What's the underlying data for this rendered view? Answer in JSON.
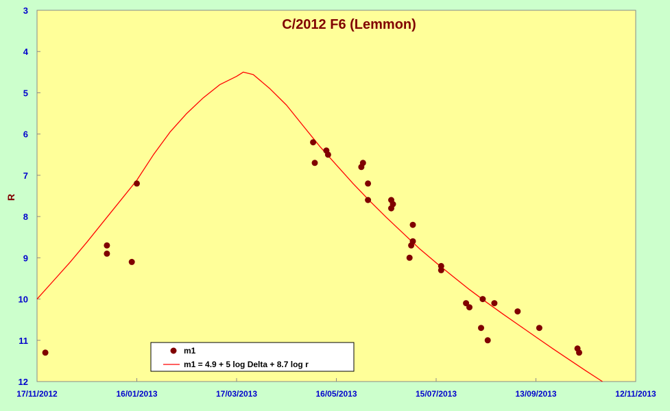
{
  "chart_data": {
    "type": "scatter",
    "title": "C/2012 F6 (Lemmon)",
    "xlabel": "",
    "ylabel": "R",
    "x_axis": {
      "type": "date",
      "min": "2012-11-17",
      "max": "2013-11-12",
      "ticks": [
        "2012-11-17",
        "2013-01-16",
        "2013-03-17",
        "2013-05-16",
        "2013-07-15",
        "2013-09-13",
        "2013-11-12"
      ],
      "tick_labels": [
        "17/11/2012",
        "16/01/2013",
        "17/03/2013",
        "16/05/2013",
        "15/07/2013",
        "13/09/2013",
        "12/11/2013"
      ]
    },
    "y_axis": {
      "min": 3,
      "max": 12,
      "reversed": true,
      "ticks": [
        3,
        4,
        5,
        6,
        7,
        8,
        9,
        10,
        11,
        12
      ],
      "tick_labels": [
        "3",
        "4",
        "5",
        "6",
        "7",
        "8",
        "9",
        "10",
        "11",
        "12"
      ]
    },
    "grid": false,
    "legend_position": "bottom-left",
    "series": [
      {
        "name": "m1",
        "kind": "points",
        "color": "#800000",
        "points": [
          {
            "x": "2012-11-22",
            "y": 11.3
          },
          {
            "x": "2012-12-29",
            "y": 8.7
          },
          {
            "x": "2012-12-29",
            "y": 8.9
          },
          {
            "x": "2013-01-13",
            "y": 9.1
          },
          {
            "x": "2013-01-16",
            "y": 7.2
          },
          {
            "x": "2013-05-02",
            "y": 6.2
          },
          {
            "x": "2013-05-03",
            "y": 6.7
          },
          {
            "x": "2013-05-10",
            "y": 6.4
          },
          {
            "x": "2013-05-11",
            "y": 6.5
          },
          {
            "x": "2013-05-31",
            "y": 6.8
          },
          {
            "x": "2013-06-01",
            "y": 6.7
          },
          {
            "x": "2013-06-04",
            "y": 7.2
          },
          {
            "x": "2013-06-04",
            "y": 7.6
          },
          {
            "x": "2013-06-18",
            "y": 7.6
          },
          {
            "x": "2013-06-18",
            "y": 7.8
          },
          {
            "x": "2013-06-19",
            "y": 7.7
          },
          {
            "x": "2013-06-29",
            "y": 9.0
          },
          {
            "x": "2013-06-30",
            "y": 8.7
          },
          {
            "x": "2013-07-01",
            "y": 8.6
          },
          {
            "x": "2013-07-01",
            "y": 8.2
          },
          {
            "x": "2013-07-18",
            "y": 9.2
          },
          {
            "x": "2013-07-18",
            "y": 9.3
          },
          {
            "x": "2013-08-02",
            "y": 10.1
          },
          {
            "x": "2013-08-04",
            "y": 10.2
          },
          {
            "x": "2013-08-11",
            "y": 10.7
          },
          {
            "x": "2013-08-12",
            "y": 10.0
          },
          {
            "x": "2013-08-15",
            "y": 11.0
          },
          {
            "x": "2013-08-19",
            "y": 10.1
          },
          {
            "x": "2013-09-02",
            "y": 10.3
          },
          {
            "x": "2013-09-15",
            "y": 10.7
          },
          {
            "x": "2013-10-08",
            "y": 11.2
          },
          {
            "x": "2013-10-09",
            "y": 11.3
          }
        ]
      },
      {
        "name": "m1 = 4.9 + 5 log Delta + 8.7  log r",
        "kind": "line",
        "color": "#ff0000",
        "points": [
          {
            "x": "2012-11-17",
            "y": 10.0
          },
          {
            "x": "2012-11-27",
            "y": 9.55
          },
          {
            "x": "2012-12-07",
            "y": 9.1
          },
          {
            "x": "2012-12-17",
            "y": 8.62
          },
          {
            "x": "2012-12-27",
            "y": 8.12
          },
          {
            "x": "2013-01-06",
            "y": 7.62
          },
          {
            "x": "2013-01-16",
            "y": 7.12
          },
          {
            "x": "2013-01-26",
            "y": 6.5
          },
          {
            "x": "2013-02-05",
            "y": 5.95
          },
          {
            "x": "2013-02-15",
            "y": 5.5
          },
          {
            "x": "2013-02-25",
            "y": 5.12
          },
          {
            "x": "2013-03-07",
            "y": 4.8
          },
          {
            "x": "2013-03-17",
            "y": 4.6
          },
          {
            "x": "2013-03-21",
            "y": 4.5
          },
          {
            "x": "2013-03-27",
            "y": 4.56
          },
          {
            "x": "2013-04-06",
            "y": 4.9
          },
          {
            "x": "2013-04-16",
            "y": 5.3
          },
          {
            "x": "2013-04-26",
            "y": 5.8
          },
          {
            "x": "2013-05-06",
            "y": 6.3
          },
          {
            "x": "2013-05-16",
            "y": 6.75
          },
          {
            "x": "2013-05-26",
            "y": 7.2
          },
          {
            "x": "2013-06-05",
            "y": 7.62
          },
          {
            "x": "2013-06-15",
            "y": 8.02
          },
          {
            "x": "2013-06-25",
            "y": 8.4
          },
          {
            "x": "2013-07-05",
            "y": 8.78
          },
          {
            "x": "2013-07-15",
            "y": 9.12
          },
          {
            "x": "2013-07-25",
            "y": 9.45
          },
          {
            "x": "2013-08-04",
            "y": 9.77
          },
          {
            "x": "2013-08-14",
            "y": 10.07
          },
          {
            "x": "2013-08-24",
            "y": 10.36
          },
          {
            "x": "2013-09-03",
            "y": 10.64
          },
          {
            "x": "2013-09-13",
            "y": 10.92
          },
          {
            "x": "2013-09-23",
            "y": 11.2
          },
          {
            "x": "2013-10-03",
            "y": 11.47
          },
          {
            "x": "2013-10-13",
            "y": 11.74
          },
          {
            "x": "2013-10-23",
            "y": 12.0
          }
        ]
      }
    ],
    "colors": {
      "background": "#ccffcc",
      "plot_area": "#ffff99",
      "axis_text": "#0000cc",
      "title_text": "#800000",
      "marker": "#800000",
      "fit_line": "#ff0000"
    }
  }
}
